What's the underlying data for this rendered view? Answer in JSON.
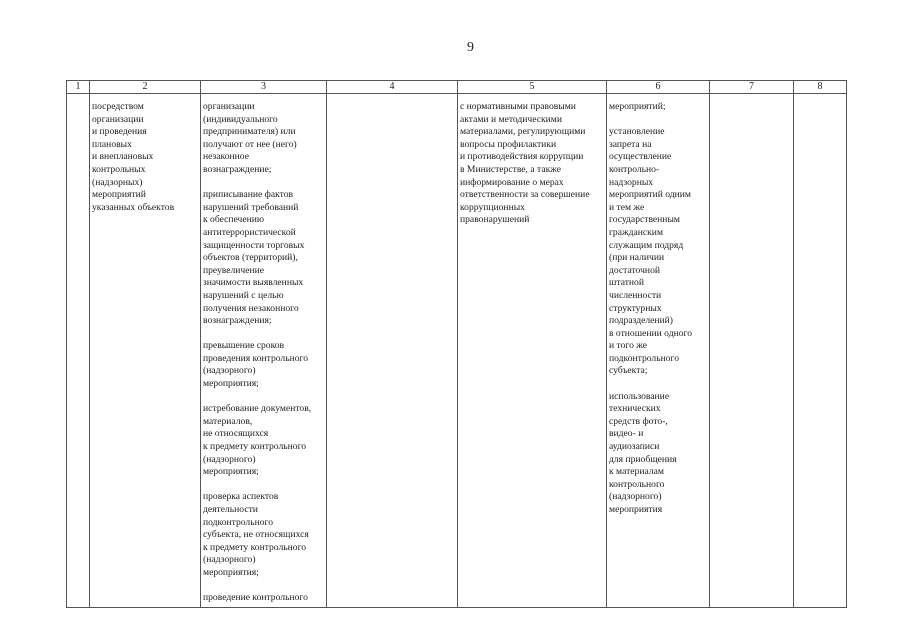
{
  "page_number": "9",
  "headers": [
    "1",
    "2",
    "3",
    "4",
    "5",
    "6",
    "7",
    "8"
  ],
  "columns": [
    [],
    [
      [
        "посредством",
        "организации",
        "и проведения",
        "плановых",
        "и внеплановых",
        "контрольных",
        "(надзорных)",
        "мероприятий",
        "указанных объектов"
      ]
    ],
    [
      [
        "организации",
        "(индивидуального",
        "предпринимателя) или",
        "получают от нее (него)",
        "незаконное",
        "вознаграждение;"
      ],
      [
        "приписывание фактов",
        "нарушений требований",
        "к обеспечению",
        "антитеррористической",
        "защищенности торговых",
        "объектов (территорий),",
        "преувеличение",
        "значимости выявленных",
        "нарушений с целью",
        "получения незаконного",
        "вознаграждения;"
      ],
      [
        "превышение сроков",
        "проведения контрольного",
        "(надзорного)",
        "мероприятия;"
      ],
      [
        "истребование документов,",
        "материалов,",
        "не относящихся",
        "к предмету контрольного",
        "(надзорного)",
        "мероприятия;"
      ],
      [
        "проверка аспектов",
        "деятельности",
        "подконтрольного",
        "субъекта, не относящихся",
        "к предмету контрольного",
        "(надзорного)",
        "мероприятия;"
      ],
      [
        "проведение контрольного"
      ]
    ],
    [],
    [
      [
        "с нормативными правовыми",
        "актами и методическими",
        "материалами, регулирующими",
        "вопросы профилактики",
        "и противодействия коррупции",
        "в Министерстве, а также",
        "информирование о мерах",
        "ответственности за совершение",
        "коррупционных",
        "правонарушений"
      ]
    ],
    [
      [
        "мероприятий;"
      ],
      [
        "установление",
        "запрета на",
        "осуществление",
        "контрольно-",
        "надзорных",
        "мероприятий одним",
        "и тем же",
        "государственным",
        "гражданским",
        "служащим подряд",
        "(при наличии",
        "достаточной",
        "штатной",
        "численности",
        "структурных",
        "подразделений)",
        "в отношении одного",
        "и того же",
        "подконтрольного",
        "субъекта;"
      ],
      [
        "использование",
        "технических",
        "средств фото-,",
        "видео- и",
        "аудиозаписи",
        "для приобщения",
        "к материалам",
        "контрольного",
        "(надзорного)",
        "мероприятия"
      ]
    ],
    [],
    []
  ]
}
